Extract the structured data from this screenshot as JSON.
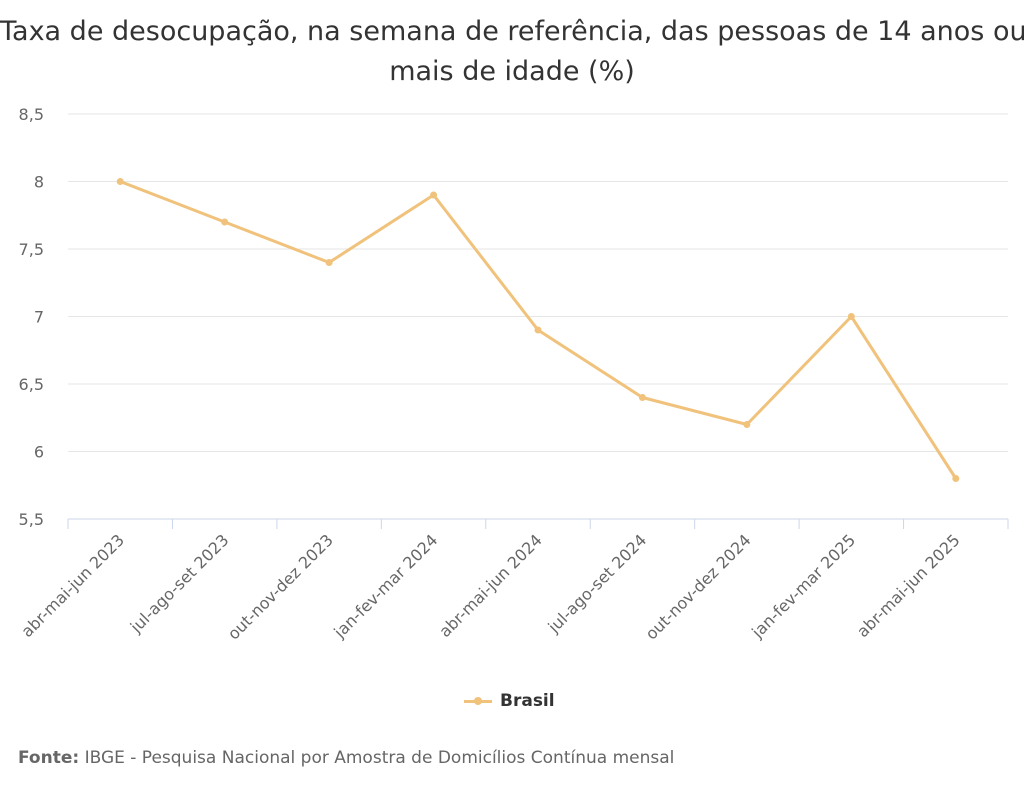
{
  "chart_data": {
    "type": "line",
    "title_lines": [
      "Taxa de desocupação, na semana de referência, das pessoas de 14 anos ou",
      "mais de idade (%)"
    ],
    "categories": [
      "abr-mai-jun 2023",
      "jul-ago-set 2023",
      "out-nov-dez 2023",
      "jan-fev-mar 2024",
      "abr-mai-jun 2024",
      "jul-ago-set 2024",
      "out-nov-dez 2024",
      "jan-fev-mar 2025",
      "abr-mai-jun 2025"
    ],
    "series": [
      {
        "name": "Brasil",
        "values": [
          8.0,
          7.7,
          7.4,
          7.9,
          6.9,
          6.4,
          6.2,
          7.0,
          5.8
        ],
        "color": "#f0c27b"
      }
    ],
    "ylim": [
      5.5,
      8.5
    ],
    "yticks": [
      5.5,
      6,
      6.5,
      7,
      7.5,
      8,
      8.5
    ],
    "ytick_labels": [
      "5,5",
      "6",
      "6,5",
      "7",
      "7,5",
      "8",
      "8,5"
    ],
    "grid": true,
    "legend_position": "bottom-center",
    "colors": {
      "grid": "#e6e6e6",
      "axis": "#ccd6eb",
      "text": "#666666",
      "title": "#333333"
    }
  },
  "source": {
    "prefix": "Fonte:",
    "text": " IBGE - Pesquisa Nacional por Amostra de Domicílios Contínua mensal"
  }
}
